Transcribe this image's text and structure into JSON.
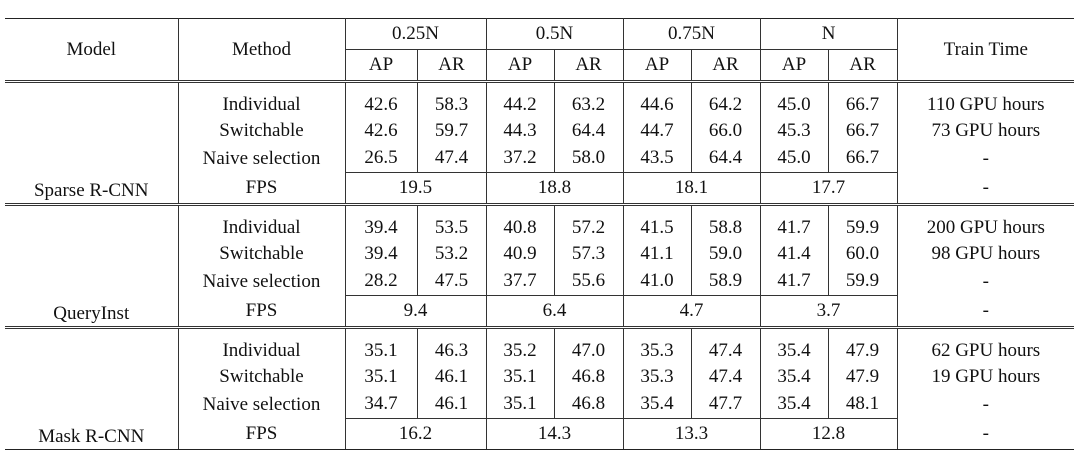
{
  "table": {
    "header": {
      "model": "Model",
      "method": "Method",
      "groups": [
        "0.25N",
        "0.5N",
        "0.75N",
        "N"
      ],
      "metrics": [
        "AP",
        "AR"
      ],
      "train_time": "Train Time"
    },
    "sections": [
      {
        "model": "Sparse R-CNN",
        "rows": [
          {
            "method": "Individual",
            "values": [
              "42.6",
              "58.3",
              "44.2",
              "63.2",
              "44.6",
              "64.2",
              "45.0",
              "66.7"
            ],
            "train_time": "110 GPU hours"
          },
          {
            "method": "Switchable",
            "values": [
              "42.6",
              "59.7",
              "44.3",
              "64.4",
              "44.7",
              "66.0",
              "45.3",
              "66.7"
            ],
            "train_time": "73 GPU hours"
          },
          {
            "method": "Naive selection",
            "values": [
              "26.5",
              "47.4",
              "37.2",
              "58.0",
              "43.5",
              "64.4",
              "45.0",
              "66.7"
            ],
            "train_time": "-"
          }
        ],
        "fps": {
          "label": "FPS",
          "values": [
            "19.5",
            "18.8",
            "18.1",
            "17.7"
          ],
          "train_time": "-"
        }
      },
      {
        "model": "QueryInst",
        "rows": [
          {
            "method": "Individual",
            "values": [
              "39.4",
              "53.5",
              "40.8",
              "57.2",
              "41.5",
              "58.8",
              "41.7",
              "59.9"
            ],
            "train_time": "200 GPU hours"
          },
          {
            "method": "Switchable",
            "values": [
              "39.4",
              "53.2",
              "40.9",
              "57.3",
              "41.1",
              "59.0",
              "41.4",
              "60.0"
            ],
            "train_time": "98 GPU hours"
          },
          {
            "method": "Naive selection",
            "values": [
              "28.2",
              "47.5",
              "37.7",
              "55.6",
              "41.0",
              "58.9",
              "41.7",
              "59.9"
            ],
            "train_time": "-"
          }
        ],
        "fps": {
          "label": "FPS",
          "values": [
            "9.4",
            "6.4",
            "4.7",
            "3.7"
          ],
          "train_time": "-"
        }
      },
      {
        "model": "Mask R-CNN",
        "rows": [
          {
            "method": "Individual",
            "values": [
              "35.1",
              "46.3",
              "35.2",
              "47.0",
              "35.3",
              "47.4",
              "35.4",
              "47.9"
            ],
            "train_time": "62 GPU hours"
          },
          {
            "method": "Switchable",
            "values": [
              "35.1",
              "46.1",
              "35.1",
              "46.8",
              "35.3",
              "47.4",
              "35.4",
              "47.9"
            ],
            "train_time": "19 GPU hours"
          },
          {
            "method": "Naive selection",
            "values": [
              "34.7",
              "46.1",
              "35.1",
              "46.8",
              "35.4",
              "47.7",
              "35.4",
              "48.1"
            ],
            "train_time": "-"
          }
        ],
        "fps": {
          "label": "FPS",
          "values": [
            "16.2",
            "14.3",
            "13.3",
            "12.8"
          ],
          "train_time": "-"
        }
      }
    ]
  }
}
